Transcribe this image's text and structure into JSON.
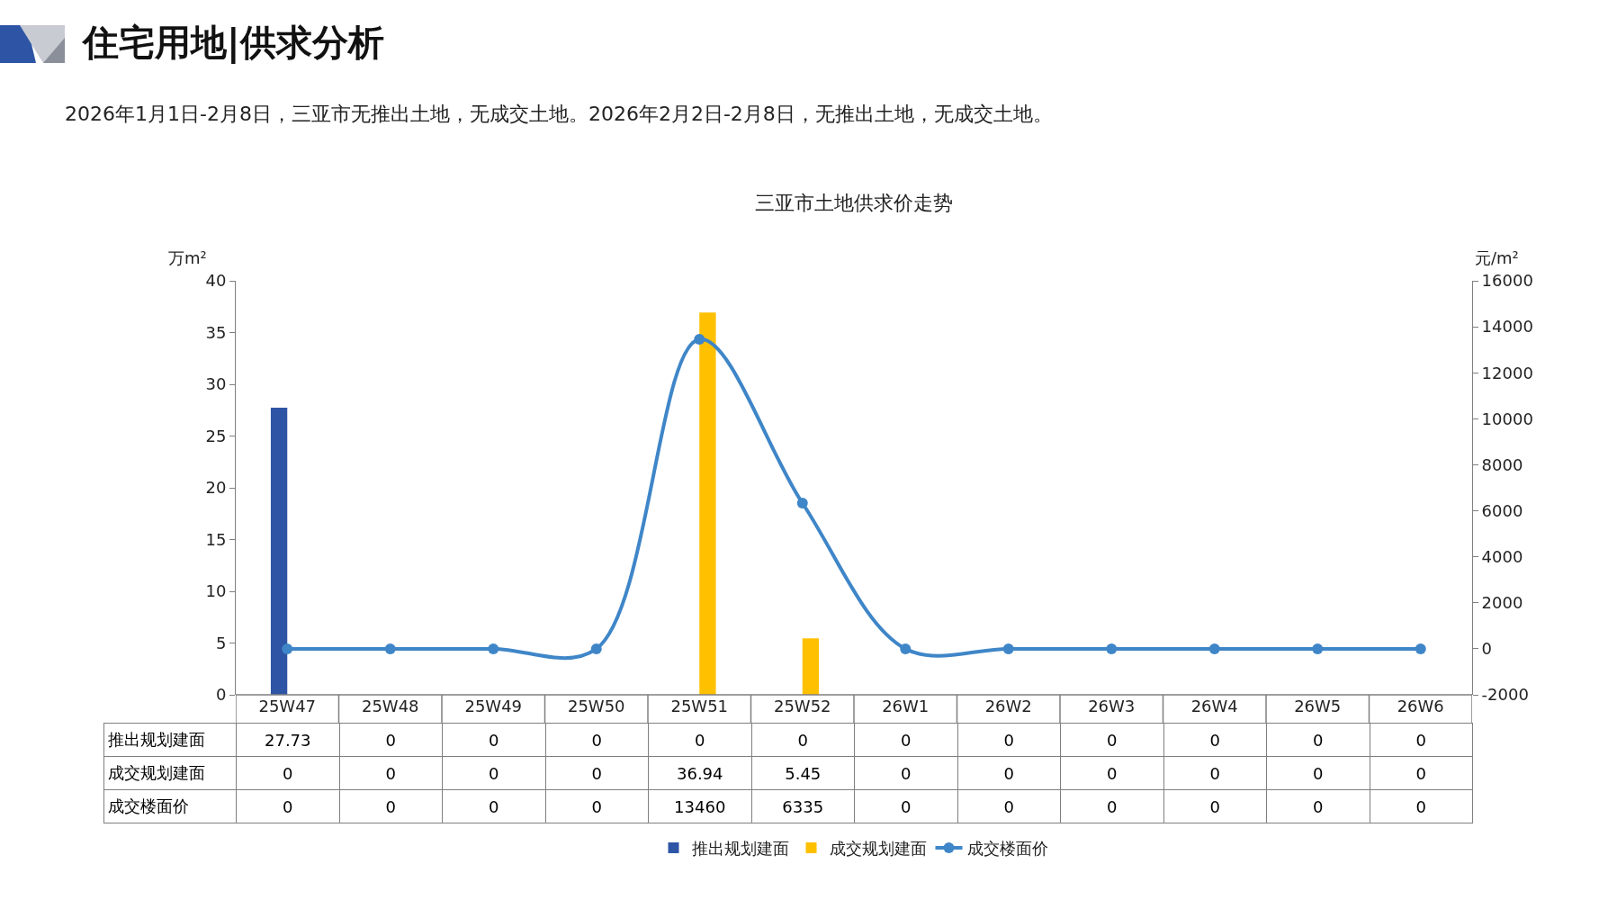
{
  "chart_data": {
    "type": "bar",
    "title": "三亚市土地供求价走势",
    "annotations": [
      "住宅用地|供求分析",
      "2026年1月1日-2月8日，三亚市无推出土地，无成交土地。2026年2月2日-2月8日，无推出土地，无成交土地。"
    ],
    "ylabel": "万m²",
    "y2label": "元/m²",
    "categories": [
      "25W47",
      "25W48",
      "25W49",
      "25W50",
      "25W51",
      "25W52",
      "26W1",
      "26W2",
      "26W3",
      "26W4",
      "26W5",
      "26W6"
    ],
    "series": [
      {
        "name": "推出规划建面",
        "type": "bar",
        "color": "#2e55a5",
        "values": [
          27.73,
          0,
          0,
          0,
          0,
          0,
          0,
          0,
          0,
          0,
          0,
          0
        ]
      },
      {
        "name": "成交规划建面",
        "type": "bar",
        "color": "#ffc000",
        "values": [
          0,
          0,
          0,
          0,
          36.94,
          5.45,
          0,
          0,
          0,
          0,
          0,
          0
        ]
      },
      {
        "name": "成交楼面价",
        "type": "line",
        "axis": "y2",
        "color": "#3f86c8",
        "marker": "circle",
        "values": [
          0,
          0,
          0,
          0,
          13460,
          6335,
          0,
          0,
          0,
          0,
          0,
          0
        ]
      }
    ],
    "ylim": [
      0,
      40
    ],
    "yticks": [
      0,
      5,
      10,
      15,
      20,
      25,
      30,
      35,
      40
    ],
    "y2lim": [
      -2000,
      16000
    ],
    "y2ticks": [
      -2000,
      0,
      2000,
      4000,
      6000,
      8000,
      10000,
      12000,
      14000,
      16000
    ],
    "data_labels": true,
    "legend": "bottom",
    "grid": false
  }
}
